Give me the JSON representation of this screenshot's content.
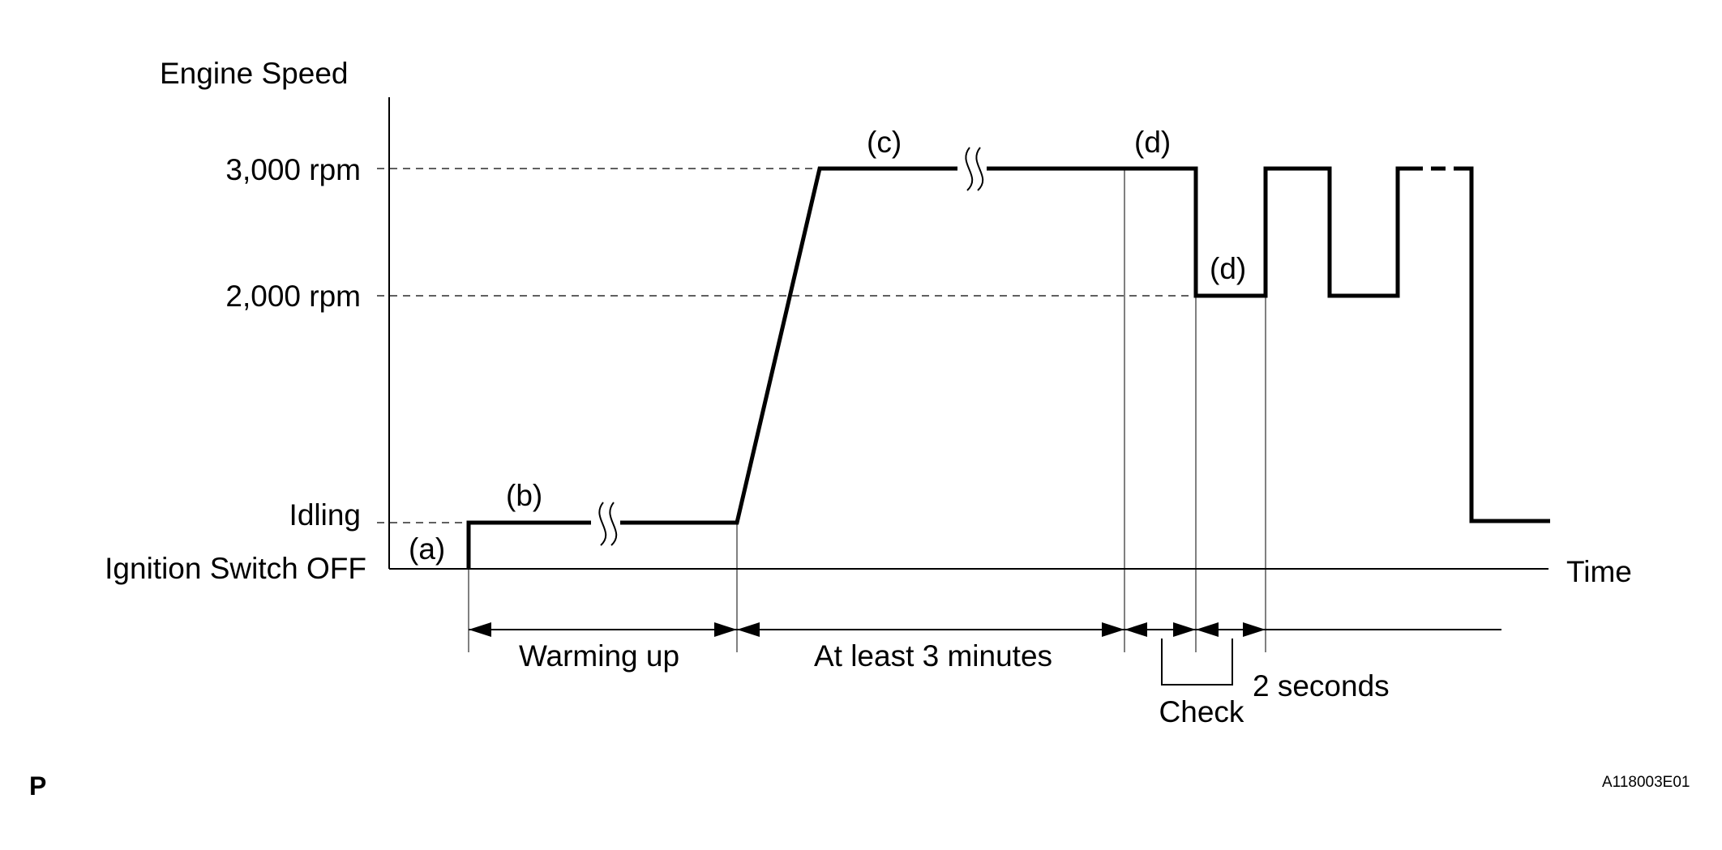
{
  "diagram": {
    "y_axis_title": "Engine Speed",
    "x_axis_title": "Time",
    "levels": {
      "high": "3,000 rpm",
      "mid": "2,000 rpm",
      "idle": "Idling",
      "off": "Ignition Switch OFF"
    },
    "steps": {
      "a": "(a)",
      "b": "(b)",
      "c": "(c)",
      "d_high": "(d)",
      "d_low": "(d)"
    },
    "intervals": {
      "warming": "Warming up",
      "min3": "At least 3 minutes",
      "two_sec": "2 seconds",
      "check": "Check"
    },
    "corner_left": "P",
    "figure_id": "A118003E01"
  }
}
